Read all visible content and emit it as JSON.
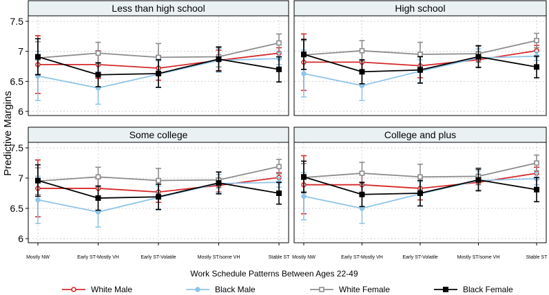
{
  "chart_data": {
    "type": "line",
    "ylabel": "Predictive Margins",
    "xlabel": "Work Schedule Patterns Between Ages 22-49",
    "ylim": [
      6,
      7.5
    ],
    "yticks": [
      "6",
      "6.5",
      "7",
      "7.5"
    ],
    "categories": [
      "Mostly NW",
      "Early ST-Mostly VH",
      "Early ST-Volatile",
      "Mostly ST/some VH",
      "Stable ST"
    ],
    "legend": {
      "placement": "bottom"
    },
    "grid": true,
    "series_styles": [
      {
        "name": "White Male",
        "color": "#d62728",
        "marker": "circle-open"
      },
      {
        "name": "Black Male",
        "color": "#8fc4e8",
        "marker": "circle-filled"
      },
      {
        "name": "White Female",
        "color": "#8c8c8c",
        "marker": "square-open"
      },
      {
        "name": "Black Female",
        "color": "#000000",
        "marker": "square-filled"
      }
    ],
    "panels": [
      {
        "title": "Less than high school",
        "series": [
          {
            "name": "White Male",
            "values": [
              6.78,
              6.78,
              6.72,
              6.85,
              6.97
            ],
            "ci_low": [
              6.3,
              6.55,
              6.52,
              6.68,
              6.88
            ],
            "ci_high": [
              7.26,
              7.01,
              6.92,
              7.02,
              7.06
            ]
          },
          {
            "name": "Black Male",
            "values": [
              6.59,
              6.39,
              6.62,
              6.85,
              6.88
            ],
            "ci_low": [
              6.18,
              6.12,
              6.4,
              6.65,
              6.78
            ],
            "ci_high": [
              7.0,
              6.66,
              6.84,
              7.05,
              6.98
            ]
          },
          {
            "name": "White Female",
            "values": [
              6.89,
              6.97,
              6.9,
              6.91,
              7.14
            ],
            "ci_low": [
              6.62,
              6.79,
              6.67,
              6.74,
              6.99
            ],
            "ci_high": [
              7.16,
              7.15,
              7.13,
              7.08,
              7.29
            ]
          },
          {
            "name": "Black Female",
            "values": [
              6.91,
              6.61,
              6.63,
              6.87,
              6.7
            ],
            "ci_low": [
              6.61,
              6.41,
              6.4,
              6.67,
              6.49
            ],
            "ci_high": [
              7.21,
              6.81,
              6.86,
              7.07,
              6.91
            ]
          }
        ]
      },
      {
        "title": "High school",
        "series": [
          {
            "name": "White Male",
            "values": [
              6.82,
              6.82,
              6.76,
              6.86,
              7.01
            ],
            "ci_low": [
              6.35,
              6.63,
              6.56,
              6.74,
              6.92
            ],
            "ci_high": [
              7.29,
              7.01,
              6.96,
              6.98,
              7.1
            ]
          },
          {
            "name": "Black Male",
            "values": [
              6.63,
              6.43,
              6.67,
              6.89,
              6.92
            ],
            "ci_low": [
              6.24,
              6.18,
              6.48,
              6.74,
              6.85
            ],
            "ci_high": [
              7.02,
              6.68,
              6.86,
              7.04,
              6.99
            ]
          },
          {
            "name": "White Female",
            "values": [
              6.94,
              7.01,
              6.95,
              6.96,
              7.18
            ],
            "ci_low": [
              6.7,
              6.84,
              6.75,
              6.82,
              7.06
            ],
            "ci_high": [
              7.18,
              7.18,
              7.15,
              7.1,
              7.3
            ]
          },
          {
            "name": "Black Female",
            "values": [
              6.95,
              6.66,
              6.69,
              6.91,
              6.74
            ],
            "ci_low": [
              6.7,
              6.46,
              6.47,
              6.73,
              6.56
            ],
            "ci_high": [
              7.2,
              6.86,
              6.91,
              7.09,
              6.92
            ]
          }
        ]
      },
      {
        "title": "Some college",
        "series": [
          {
            "name": "White Male",
            "values": [
              6.83,
              6.83,
              6.77,
              6.88,
              7.01
            ],
            "ci_low": [
              6.36,
              6.66,
              6.6,
              6.77,
              6.93
            ],
            "ci_high": [
              7.3,
              7.0,
              6.94,
              6.99,
              7.09
            ]
          },
          {
            "name": "Black Male",
            "values": [
              6.64,
              6.44,
              6.68,
              6.91,
              6.93
            ],
            "ci_low": [
              6.25,
              6.19,
              6.49,
              6.76,
              6.85
            ],
            "ci_high": [
              7.03,
              6.69,
              6.87,
              7.06,
              7.01
            ]
          },
          {
            "name": "White Female",
            "values": [
              6.95,
              7.02,
              6.96,
              6.97,
              7.19
            ],
            "ci_low": [
              6.73,
              6.86,
              6.76,
              6.84,
              7.07
            ],
            "ci_high": [
              7.17,
              7.18,
              7.16,
              7.1,
              7.31
            ]
          },
          {
            "name": "Black Female",
            "values": [
              6.96,
              6.67,
              6.69,
              6.92,
              6.75
            ],
            "ci_low": [
              6.7,
              6.47,
              6.48,
              6.74,
              6.57
            ],
            "ci_high": [
              7.22,
              6.87,
              6.9,
              7.1,
              6.93
            ]
          }
        ]
      },
      {
        "title": "College and plus",
        "series": [
          {
            "name": "White Male",
            "values": [
              6.89,
              6.89,
              6.83,
              6.93,
              7.08
            ],
            "ci_low": [
              6.41,
              6.71,
              6.64,
              6.8,
              6.98
            ],
            "ci_high": [
              7.37,
              7.07,
              7.02,
              7.06,
              7.18
            ]
          },
          {
            "name": "Black Male",
            "values": [
              6.7,
              6.5,
              6.74,
              6.96,
              6.99
            ],
            "ci_low": [
              6.31,
              6.25,
              6.54,
              6.8,
              6.89
            ],
            "ci_high": [
              7.09,
              6.75,
              6.94,
              7.12,
              7.09
            ]
          },
          {
            "name": "White Female",
            "values": [
              7.01,
              7.08,
              7.02,
              7.03,
              7.25
            ],
            "ci_low": [
              6.78,
              6.9,
              6.81,
              6.89,
              7.12
            ],
            "ci_high": [
              7.24,
              7.26,
              7.23,
              7.17,
              7.38
            ]
          },
          {
            "name": "Black Female",
            "values": [
              7.02,
              6.73,
              6.75,
              6.97,
              6.81
            ],
            "ci_low": [
              6.76,
              6.53,
              6.54,
              6.79,
              6.61
            ],
            "ci_high": [
              7.28,
              6.93,
              6.96,
              7.15,
              7.01
            ]
          }
        ]
      }
    ]
  }
}
